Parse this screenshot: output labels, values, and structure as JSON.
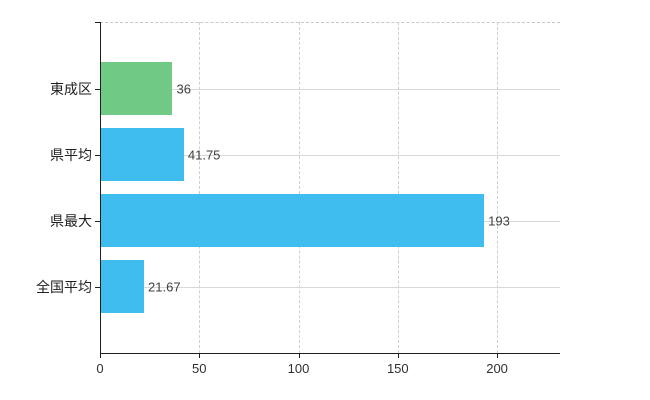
{
  "chart_data": {
    "type": "bar",
    "orientation": "horizontal",
    "title": "",
    "xlabel": "",
    "ylabel": "",
    "categories": [
      "東成区",
      "県平均",
      "県最大",
      "全国平均"
    ],
    "values": [
      36,
      41.75,
      193,
      21.67
    ],
    "value_labels": [
      "36",
      "41.75",
      "193",
      "21.67"
    ],
    "bar_colors": [
      "#70c985",
      "#3fbdef",
      "#3fbdef",
      "#3fbdef"
    ],
    "x_ticks": [
      0,
      50,
      100,
      150,
      200
    ],
    "x_tick_labels": [
      "0",
      "50",
      "100",
      "150",
      "200"
    ],
    "xlim": [
      0,
      231.7
    ],
    "grid": true,
    "legend": "none",
    "colors": {
      "green_bar": "#70c985",
      "blue_bar": "#3fbdef",
      "gridline": "#d4dbd4",
      "axis": "#1f1f1f",
      "background": "#ffffff"
    }
  }
}
